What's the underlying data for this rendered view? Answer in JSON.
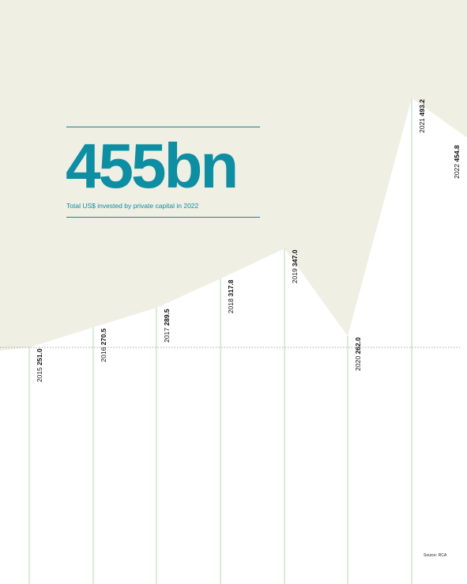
{
  "headline": {
    "value": "455bn",
    "caption": "Total US$ invested by private capital in 2022"
  },
  "source": "Source: RCA",
  "colors": {
    "area_fill": "#efefe3",
    "accent": "#0e8ea3",
    "year_lines": "#9fd39a",
    "baseline": "#8a8a8a"
  },
  "chart_data": {
    "type": "area",
    "title": "",
    "xlabel": "",
    "ylabel": "",
    "baseline_value": 251.0,
    "x": [
      "2015",
      "2016",
      "2017",
      "2018",
      "2019",
      "2020",
      "2021",
      "2022"
    ],
    "values": [
      251.0,
      270.5,
      289.5,
      317.8,
      347.0,
      262.0,
      493.2,
      454.8
    ],
    "value_labels": [
      "251.0",
      "270.5",
      "289.5",
      "317.8",
      "347.0",
      "262.0",
      "493.2",
      "454.8"
    ],
    "grid": false,
    "legend": "none"
  }
}
